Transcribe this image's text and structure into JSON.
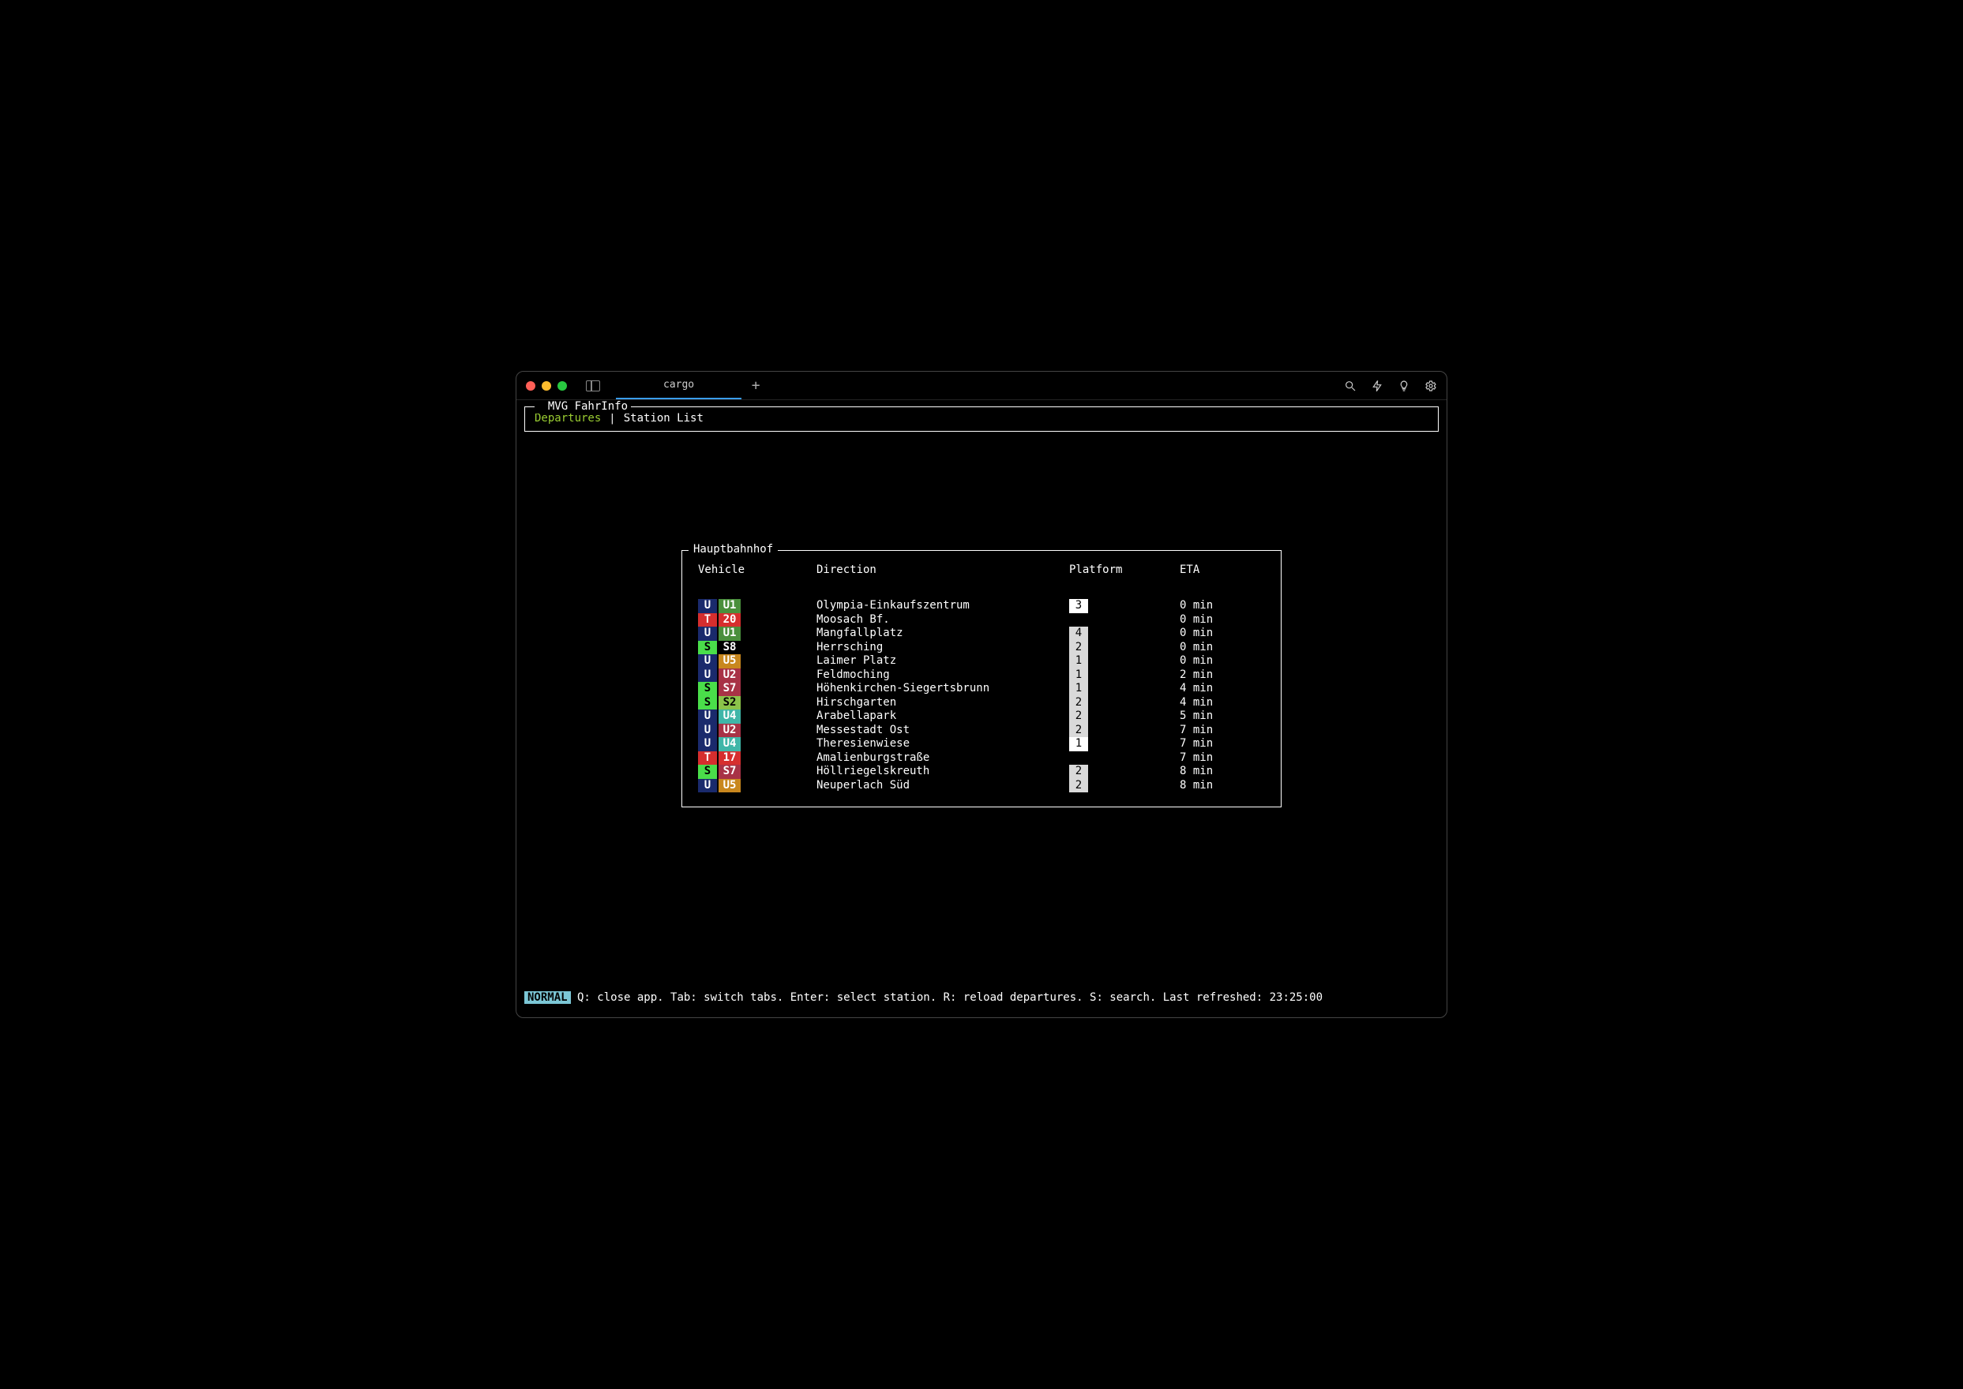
{
  "window": {
    "tab_title": "cargo",
    "traffic_light_colors": {
      "close": "#ff5f57",
      "min": "#febc2e",
      "max": "#28c840"
    }
  },
  "app": {
    "title": "MVG FahrInfo",
    "tabs": [
      {
        "label": "Departures",
        "active": true
      },
      {
        "label": "Station List",
        "active": false
      }
    ],
    "tab_separator": "│",
    "active_tab_color": "#9acd32"
  },
  "departures": {
    "station": "Hauptbahnhof",
    "columns": {
      "vehicle": "Vehicle",
      "direction": "Direction",
      "platform": "Platform",
      "eta": "ETA"
    },
    "rows": [
      {
        "vtype": "U",
        "vtype_bg": "#1a2a6c",
        "vtype_fg": "#ffffff",
        "line": "U1",
        "line_bg": "#4a8f3c",
        "line_fg": "#ffffff",
        "direction": "Olympia-Einkaufszentrum",
        "platform": "3",
        "platform_bg": "#ffffff",
        "eta": "0 min"
      },
      {
        "vtype": "T",
        "vtype_bg": "#d62e2e",
        "vtype_fg": "#ffffff",
        "line": "20",
        "line_bg": "#d62e2e",
        "line_fg": "#ffffff",
        "direction": "Moosach Bf.",
        "platform": "",
        "platform_bg": "",
        "eta": "0 min"
      },
      {
        "vtype": "U",
        "vtype_bg": "#1a2a6c",
        "vtype_fg": "#ffffff",
        "line": "U1",
        "line_bg": "#4a8f3c",
        "line_fg": "#ffffff",
        "direction": "Mangfallplatz",
        "platform": "4",
        "platform_bg": "#d9d9d9",
        "eta": "0 min"
      },
      {
        "vtype": "S",
        "vtype_bg": "#4ade4a",
        "vtype_fg": "#000000",
        "line": "S8",
        "line_bg": "#000000",
        "line_fg": "#ffffff",
        "direction": "Herrsching",
        "platform": "2",
        "platform_bg": "#d9d9d9",
        "eta": "0 min"
      },
      {
        "vtype": "U",
        "vtype_bg": "#1a2a6c",
        "vtype_fg": "#ffffff",
        "line": "U5",
        "line_bg": "#c8871e",
        "line_fg": "#ffffff",
        "direction": "Laimer Platz",
        "platform": "1",
        "platform_bg": "#d9d9d9",
        "eta": "0 min"
      },
      {
        "vtype": "U",
        "vtype_bg": "#1a2a6c",
        "vtype_fg": "#ffffff",
        "line": "U2",
        "line_bg": "#a83246",
        "line_fg": "#ffffff",
        "direction": "Feldmoching",
        "platform": "1",
        "platform_bg": "#d9d9d9",
        "eta": "2 min"
      },
      {
        "vtype": "S",
        "vtype_bg": "#4ade4a",
        "vtype_fg": "#000000",
        "line": "S7",
        "line_bg": "#a83246",
        "line_fg": "#ffffff",
        "direction": "Höhenkirchen-Siegertsbrunn",
        "platform": "1",
        "platform_bg": "#d9d9d9",
        "eta": "4 min"
      },
      {
        "vtype": "S",
        "vtype_bg": "#4ade4a",
        "vtype_fg": "#000000",
        "line": "S2",
        "line_bg": "#8bc34a",
        "line_fg": "#000000",
        "direction": "Hirschgarten",
        "platform": "2",
        "platform_bg": "#d9d9d9",
        "eta": "4 min"
      },
      {
        "vtype": "U",
        "vtype_bg": "#1a2a6c",
        "vtype_fg": "#ffffff",
        "line": "U4",
        "line_bg": "#3fb6a8",
        "line_fg": "#ffffff",
        "direction": "Arabellapark",
        "platform": "2",
        "platform_bg": "#d9d9d9",
        "eta": "5 min"
      },
      {
        "vtype": "U",
        "vtype_bg": "#1a2a6c",
        "vtype_fg": "#ffffff",
        "line": "U2",
        "line_bg": "#a83246",
        "line_fg": "#ffffff",
        "direction": "Messestadt Ost",
        "platform": "2",
        "platform_bg": "#d9d9d9",
        "eta": "7 min"
      },
      {
        "vtype": "U",
        "vtype_bg": "#1a2a6c",
        "vtype_fg": "#ffffff",
        "line": "U4",
        "line_bg": "#3fb6a8",
        "line_fg": "#ffffff",
        "direction": "Theresienwiese",
        "platform": "1",
        "platform_bg": "#ffffff",
        "eta": "7 min"
      },
      {
        "vtype": "T",
        "vtype_bg": "#d62e2e",
        "vtype_fg": "#ffffff",
        "line": "17",
        "line_bg": "#d62e2e",
        "line_fg": "#ffffff",
        "direction": "Amalienburgstraße",
        "platform": "",
        "platform_bg": "",
        "eta": "7 min"
      },
      {
        "vtype": "S",
        "vtype_bg": "#4ade4a",
        "vtype_fg": "#000000",
        "line": "S7",
        "line_bg": "#a83246",
        "line_fg": "#ffffff",
        "direction": "Höllriegelskreuth",
        "platform": "2",
        "platform_bg": "#d9d9d9",
        "eta": "8 min"
      },
      {
        "vtype": "U",
        "vtype_bg": "#1a2a6c",
        "vtype_fg": "#ffffff",
        "line": "U5",
        "line_bg": "#c8871e",
        "line_fg": "#ffffff",
        "direction": "Neuperlach Süd",
        "platform": "2",
        "platform_bg": "#d9d9d9",
        "eta": "8 min"
      }
    ]
  },
  "status": {
    "mode": "NORMAL",
    "mode_bg": "#7cc7d6",
    "help": " Q: close app. Tab: switch tabs. Enter: select station. R: reload departures. S: search. Last refreshed: 23:25:00"
  }
}
